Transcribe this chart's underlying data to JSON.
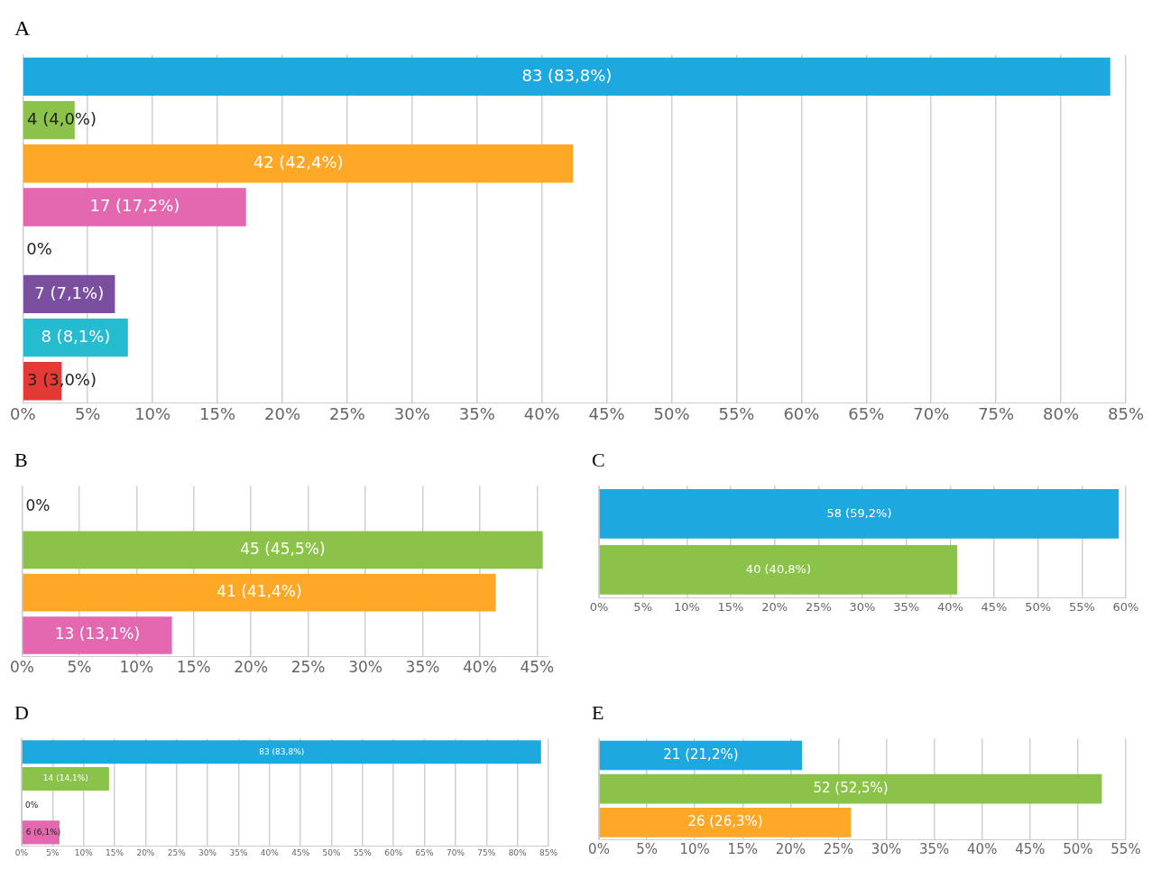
{
  "chart_data": [
    {
      "type": "bar",
      "title": "A",
      "orientation": "horizontal",
      "grid": "x",
      "tick_labels": "x",
      "categories": [
        null,
        null,
        null,
        null,
        null,
        null,
        null,
        null
      ],
      "values": [
        83.8,
        4.0,
        42.4,
        17.2,
        0,
        7.1,
        8.1,
        3.0
      ],
      "colors": [
        "#1ea8e0",
        "#8bc34a",
        "#ffa726",
        "#e468b0",
        "#999999",
        "#7b4fa0",
        "#26bcd0",
        "#e53935"
      ],
      "value_labels": [
        "83 (83,8%)",
        "4 (4,0%)",
        "42 (42,4%)",
        "17 (17,2%)",
        "0%",
        "7 (7,1%)",
        "8 (8,1%)",
        "3 (3,0%)"
      ],
      "xlim": [
        0,
        85
      ],
      "xticks": [
        {
          "value": 0,
          "label": "0%"
        },
        {
          "value": 5,
          "label": "5%"
        },
        {
          "value": 10,
          "label": "10%"
        },
        {
          "value": 15,
          "label": "15%"
        },
        {
          "value": 20,
          "label": "20%"
        },
        {
          "value": 25,
          "label": "25%"
        },
        {
          "value": 30,
          "label": "30%"
        },
        {
          "value": 35,
          "label": "35%"
        },
        {
          "value": 40,
          "label": "40%"
        },
        {
          "value": 45,
          "label": "45%"
        },
        {
          "value": 50,
          "label": "50%"
        },
        {
          "value": 55,
          "label": "55%"
        },
        {
          "value": 60,
          "label": "60%"
        },
        {
          "value": 65,
          "label": "65%"
        },
        {
          "value": 70,
          "label": "70%"
        },
        {
          "value": 75,
          "label": "75%"
        },
        {
          "value": 80,
          "label": "80%"
        },
        {
          "value": 85,
          "label": "85%"
        }
      ]
    },
    {
      "type": "bar",
      "title": "B",
      "orientation": "horizontal",
      "grid": "x",
      "tick_labels": "x",
      "categories": [
        null,
        null,
        null,
        null
      ],
      "values": [
        0,
        45.5,
        41.4,
        13.1
      ],
      "colors": [
        "#999999",
        "#8bc34a",
        "#ffa726",
        "#e468b0"
      ],
      "value_labels": [
        "0%",
        "45 (45,5%)",
        "41 (41,4%)",
        "13 (13,1%)"
      ],
      "xlim": [
        0,
        46
      ],
      "xticks": [
        {
          "value": 0,
          "label": "0%"
        },
        {
          "value": 5,
          "label": "5%"
        },
        {
          "value": 10,
          "label": "10%"
        },
        {
          "value": 15,
          "label": "15%"
        },
        {
          "value": 20,
          "label": "20%"
        },
        {
          "value": 25,
          "label": "25%"
        },
        {
          "value": 30,
          "label": "30%"
        },
        {
          "value": 35,
          "label": "35%"
        },
        {
          "value": 40,
          "label": "40%"
        },
        {
          "value": 45,
          "label": "45%"
        }
      ]
    },
    {
      "type": "bar",
      "title": "C",
      "orientation": "horizontal",
      "grid": "x",
      "tick_labels": "x",
      "categories": [
        null,
        null
      ],
      "values": [
        59.2,
        40.8
      ],
      "colors": [
        "#1ea8e0",
        "#8bc34a"
      ],
      "value_labels": [
        "58 (59,2%)",
        "40 (40,8%)"
      ],
      "xlim": [
        0,
        60
      ],
      "xticks": [
        {
          "value": 0,
          "label": "0%"
        },
        {
          "value": 5,
          "label": "5%"
        },
        {
          "value": 10,
          "label": "10%"
        },
        {
          "value": 15,
          "label": "15%"
        },
        {
          "value": 20,
          "label": "20%"
        },
        {
          "value": 25,
          "label": "25%"
        },
        {
          "value": 30,
          "label": "30%"
        },
        {
          "value": 35,
          "label": "35%"
        },
        {
          "value": 40,
          "label": "40%"
        },
        {
          "value": 45,
          "label": "45%"
        },
        {
          "value": 50,
          "label": "50%"
        },
        {
          "value": 55,
          "label": "55%"
        },
        {
          "value": 60,
          "label": "60%"
        }
      ]
    },
    {
      "type": "bar",
      "title": "D",
      "orientation": "horizontal",
      "grid": "x",
      "tick_labels": "x",
      "categories": [
        null,
        null,
        null,
        null
      ],
      "values": [
        83.8,
        14.1,
        0,
        6.1
      ],
      "colors": [
        "#1ea8e0",
        "#8bc34a",
        "#999999",
        "#e468b0"
      ],
      "value_labels": [
        "83 (83,8%)",
        "14 (14,1%)",
        "0%",
        "6 (6,1%)"
      ],
      "xlim": [
        0,
        85
      ],
      "xticks": [
        {
          "value": 0,
          "label": "0%"
        },
        {
          "value": 5,
          "label": "5%"
        },
        {
          "value": 10,
          "label": "10%"
        },
        {
          "value": 15,
          "label": "15%"
        },
        {
          "value": 20,
          "label": "20%"
        },
        {
          "value": 25,
          "label": "25%"
        },
        {
          "value": 30,
          "label": "30%"
        },
        {
          "value": 35,
          "label": "35%"
        },
        {
          "value": 40,
          "label": "40%"
        },
        {
          "value": 45,
          "label": "45%"
        },
        {
          "value": 50,
          "label": "50%"
        },
        {
          "value": 55,
          "label": "55%"
        },
        {
          "value": 60,
          "label": "60%"
        },
        {
          "value": 65,
          "label": "65%"
        },
        {
          "value": 70,
          "label": "70%"
        },
        {
          "value": 75,
          "label": "75%"
        },
        {
          "value": 80,
          "label": "80%"
        },
        {
          "value": 85,
          "label": "85%"
        }
      ]
    },
    {
      "type": "bar",
      "title": "E",
      "orientation": "horizontal",
      "grid": "x",
      "tick_labels": "x",
      "categories": [
        null,
        null,
        null
      ],
      "values": [
        21.2,
        52.5,
        26.3
      ],
      "colors": [
        "#1ea8e0",
        "#8bc34a",
        "#ffa726"
      ],
      "value_labels": [
        "21 (21,2%)",
        "52 (52,5%)",
        "26 (26,3%)"
      ],
      "xlim": [
        0,
        55
      ],
      "xticks": [
        {
          "value": 0,
          "label": "0%"
        },
        {
          "value": 5,
          "label": "5%"
        },
        {
          "value": 10,
          "label": "10%"
        },
        {
          "value": 15,
          "label": "15%"
        },
        {
          "value": 20,
          "label": "20%"
        },
        {
          "value": 25,
          "label": "25%"
        },
        {
          "value": 30,
          "label": "30%"
        },
        {
          "value": 35,
          "label": "35%"
        },
        {
          "value": 40,
          "label": "40%"
        },
        {
          "value": 45,
          "label": "45%"
        },
        {
          "value": 50,
          "label": "50%"
        },
        {
          "value": 55,
          "label": "55%"
        }
      ]
    }
  ]
}
